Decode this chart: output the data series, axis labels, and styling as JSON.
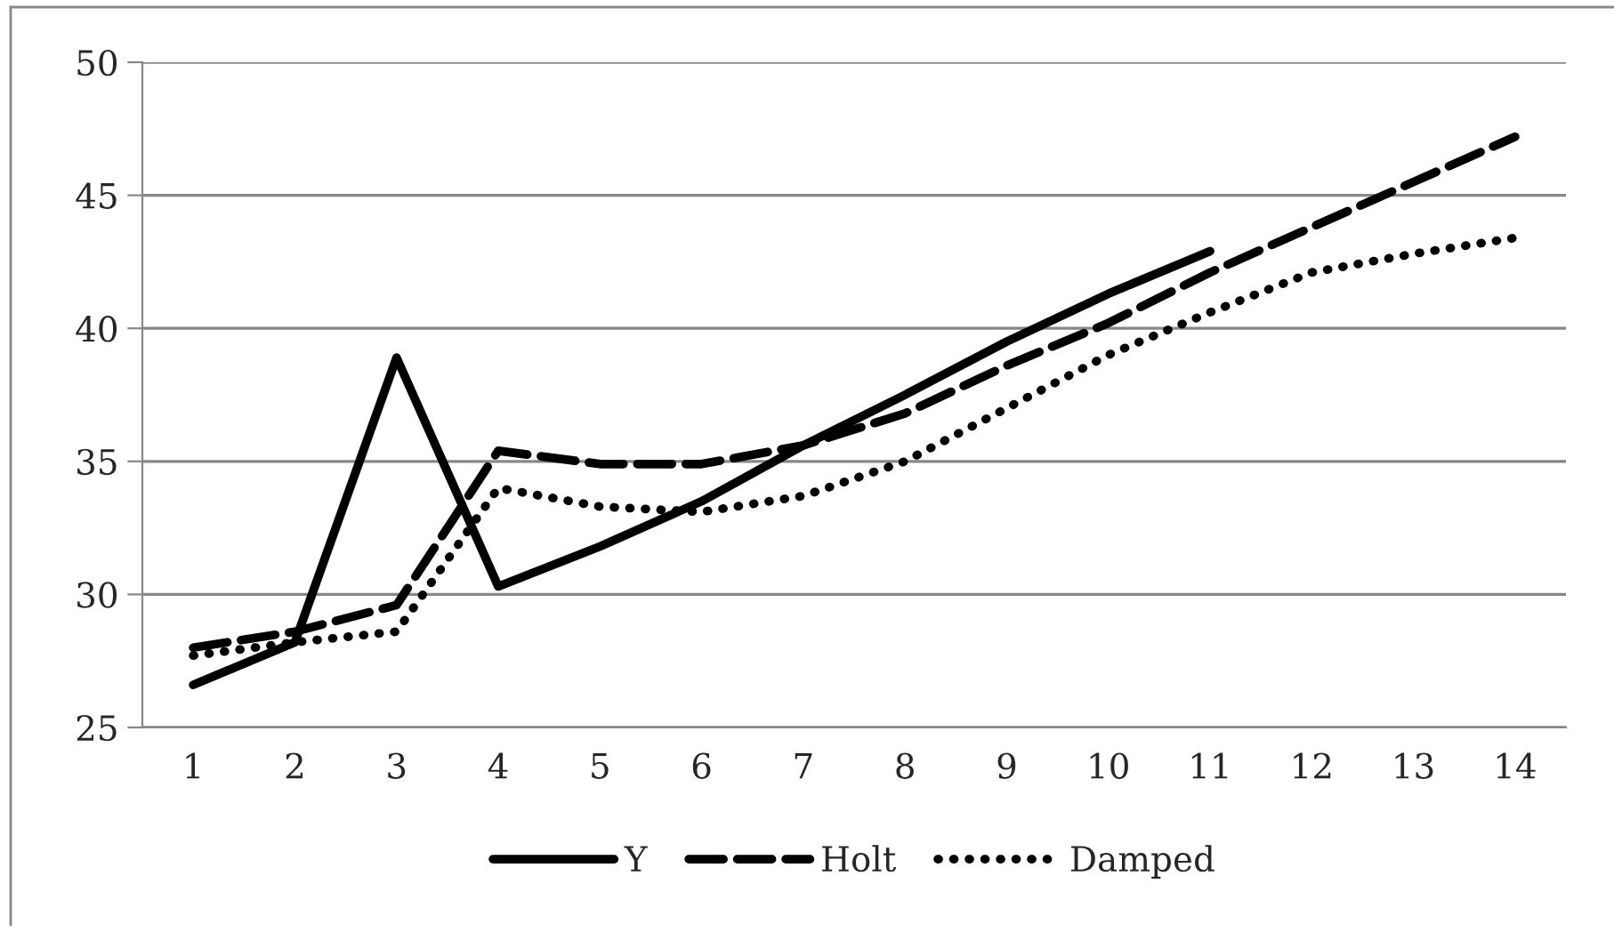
{
  "chart_data": {
    "type": "line",
    "categories": [
      "1",
      "2",
      "3",
      "4",
      "5",
      "6",
      "7",
      "8",
      "9",
      "10",
      "11",
      "12",
      "13",
      "14"
    ],
    "series": [
      {
        "name": "Y",
        "color": "#000000",
        "line_style": "solid",
        "values": [
          26.6,
          28.2,
          38.9,
          30.3,
          31.8,
          33.5,
          35.6,
          37.5,
          39.5,
          41.3,
          42.9,
          null,
          null,
          null
        ]
      },
      {
        "name": "Holt",
        "color": "#000000",
        "line_style": "dashed",
        "values": [
          28.0,
          28.6,
          29.6,
          35.4,
          34.9,
          34.9,
          35.6,
          36.8,
          38.6,
          40.2,
          42.1,
          43.8,
          45.5,
          47.2
        ]
      },
      {
        "name": "Damped",
        "color": "#000000",
        "line_style": "dotted",
        "values": [
          27.7,
          28.2,
          28.6,
          34.0,
          33.3,
          33.1,
          33.7,
          35.0,
          37.0,
          39.0,
          40.6,
          42.1,
          42.8,
          43.4
        ]
      }
    ],
    "ylim": [
      25,
      50
    ],
    "yticks": [
      25,
      30,
      35,
      40,
      45,
      50
    ],
    "grid": "y",
    "legend": "bottom",
    "marker": "none"
  }
}
